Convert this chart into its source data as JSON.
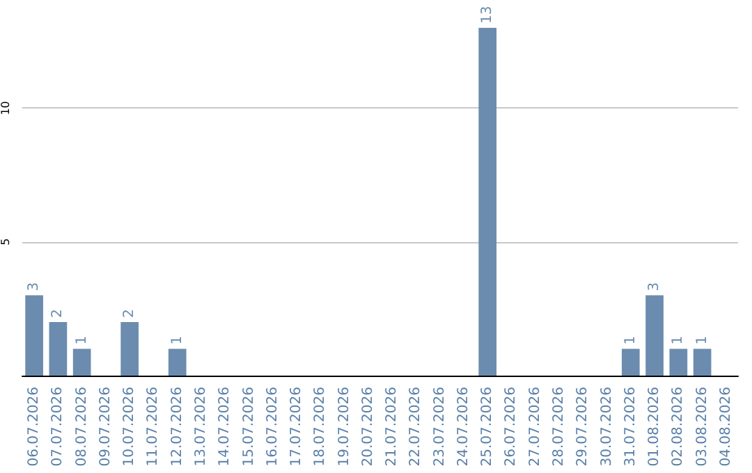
{
  "chart_data": {
    "type": "bar",
    "categories": [
      "06.07.2026",
      "07.07.2026",
      "08.07.2026",
      "09.07.2026",
      "10.07.2026",
      "11.07.2026",
      "12.07.2026",
      "13.07.2026",
      "14.07.2026",
      "15.07.2026",
      "16.07.2026",
      "17.07.2026",
      "18.07.2026",
      "19.07.2026",
      "20.07.2026",
      "21.07.2026",
      "22.07.2026",
      "23.07.2026",
      "24.07.2026",
      "25.07.2026",
      "26.07.2026",
      "27.07.2026",
      "28.07.2026",
      "29.07.2026",
      "30.07.2026",
      "31.07.2026",
      "01.08.2026",
      "02.08.2026",
      "03.08.2026",
      "04.08.2026"
    ],
    "values": [
      3,
      2,
      1,
      0,
      2,
      0,
      1,
      0,
      0,
      0,
      0,
      0,
      0,
      0,
      0,
      0,
      0,
      0,
      0,
      13,
      0,
      0,
      0,
      0,
      0,
      1,
      3,
      1,
      1,
      0
    ],
    "value_labels": [
      "3",
      "2",
      "1",
      null,
      "2",
      null,
      "1",
      null,
      null,
      null,
      null,
      null,
      null,
      null,
      null,
      null,
      null,
      null,
      null,
      "13",
      null,
      null,
      null,
      null,
      null,
      "1",
      "3",
      "1",
      "1",
      null
    ],
    "color": "#6b8cae",
    "ylim": [
      0,
      13
    ],
    "yticks": [
      {
        "value": 0,
        "label": null
      },
      5,
      10
    ],
    "grid": "y"
  }
}
